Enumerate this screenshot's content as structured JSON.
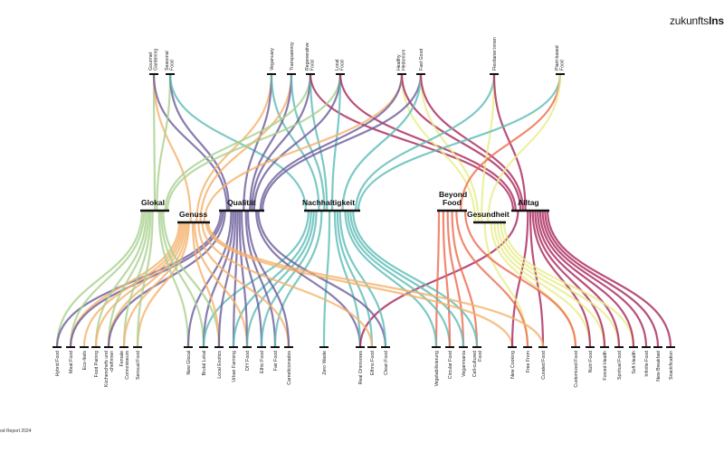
{
  "logo": {
    "part1": "zukunfts",
    "part2": "Inst"
  },
  "footnote": "od Report 2024",
  "hubs": [
    {
      "id": "glokal",
      "label": "Glokal",
      "color": "#a9d18e"
    },
    {
      "id": "genuss",
      "label": "Genuss",
      "color": "#f5b26b"
    },
    {
      "id": "qualitaet",
      "label": "Qualität",
      "color": "#6a5b9a"
    },
    {
      "id": "nachhaltigkeit",
      "label": "Nachhaltigkeit",
      "color": "#5bbcb6"
    },
    {
      "id": "beyond",
      "label": "Beyond Food",
      "color": "#ec6a4d"
    },
    {
      "id": "gesundheit",
      "label": "Gesundheit",
      "color": "#e8ec8a"
    },
    {
      "id": "alltag",
      "label": "Alltag",
      "color": "#a8245a"
    }
  ],
  "top_trends": [
    {
      "label": "Gourmet Gardening",
      "hubs": [
        "glokal",
        "genuss",
        "qualitaet"
      ]
    },
    {
      "label": "Seasonal Food",
      "hubs": [
        "glokal",
        "qualitaet",
        "nachhaltigkeit"
      ]
    },
    {
      "label": "Veganuary",
      "hubs": [
        "genuss",
        "qualitaet",
        "nachhaltigkeit"
      ]
    },
    {
      "label": "Transparency",
      "hubs": [
        "genuss",
        "qualitaet",
        "nachhaltigkeit"
      ]
    },
    {
      "label": "Regenerative Food",
      "hubs": [
        "glokal",
        "qualitaet",
        "nachhaltigkeit",
        "alltag"
      ]
    },
    {
      "label": "Local Food",
      "hubs": [
        "glokal",
        "qualitaet",
        "nachhaltigkeit",
        "alltag"
      ]
    },
    {
      "label": "Healthy Hedonism",
      "hubs": [
        "genuss",
        "qualitaet",
        "gesundheit",
        "alltag"
      ]
    },
    {
      "label": "Fast Good",
      "hubs": [
        "qualitaet",
        "nachhaltigkeit",
        "gesundheit",
        "alltag"
      ]
    },
    {
      "label": "Flexitarier:innen",
      "hubs": [
        "nachhaltigkeit",
        "gesundheit",
        "alltag"
      ]
    },
    {
      "label": "Plant-based Food",
      "hubs": [
        "nachhaltigkeit",
        "beyond",
        "gesundheit"
      ]
    }
  ],
  "bottom_trends": [
    {
      "label": "Hybrid Food",
      "hubs": [
        "glokal",
        "qualitaet"
      ]
    },
    {
      "label": "Meat Food",
      "hubs": [
        "glokal",
        "genuss",
        "qualitaet"
      ]
    },
    {
      "label": "Eco-Ikels",
      "hubs": [
        "genuss"
      ]
    },
    {
      "label": "Food Pairing",
      "hubs": [
        "glokal",
        "genuss"
      ]
    },
    {
      "label": "Küchenchefs und -chefinnen",
      "hubs": [
        "glokal",
        "genuss",
        "qualitaet"
      ]
    },
    {
      "label": "Female Connoisseurs",
      "hubs": [
        "glokal",
        "genuss"
      ]
    },
    {
      "label": "Sensual Food",
      "hubs": [
        "genuss",
        "glokal"
      ]
    },
    {
      "label": "New Glocal",
      "hubs": [
        "glokal",
        "qualitaet"
      ]
    },
    {
      "label": "Brutal Lokal",
      "hubs": [
        "glokal",
        "qualitaet",
        "nachhaltigkeit"
      ]
    },
    {
      "label": "Local Exotics",
      "hubs": [
        "glokal",
        "genuss",
        "qualitaet"
      ]
    },
    {
      "label": "Urban Farming",
      "hubs": [
        "qualitaet",
        "nachhaltigkeit"
      ]
    },
    {
      "label": "DIY Food",
      "hubs": [
        "genuss",
        "qualitaet",
        "nachhaltigkeit"
      ]
    },
    {
      "label": "Ethic Food",
      "hubs": [
        "qualitaet",
        "nachhaltigkeit"
      ]
    },
    {
      "label": "Fair Food",
      "hubs": [
        "qualitaet",
        "nachhaltigkeit"
      ]
    },
    {
      "label": "Carnetícionados",
      "hubs": [
        "genuss",
        "qualitaet"
      ]
    },
    {
      "label": "Zero Waste",
      "hubs": [
        "nachhaltigkeit"
      ]
    },
    {
      "label": "Real Omnivores",
      "hubs": [
        "qualitaet",
        "nachhaltigkeit",
        "alltag"
      ]
    },
    {
      "label": "Ethno Food",
      "hubs": [
        "nachhaltigkeit",
        "genuss"
      ]
    },
    {
      "label": "Clean Food",
      "hubs": [
        "qualitaet",
        "nachhaltigkeit"
      ]
    },
    {
      "label": "Vegetabilisierung",
      "hubs": [
        "beyond",
        "nachhaltigkeit"
      ]
    },
    {
      "label": "Circular Food",
      "hubs": [
        "nachhaltigkeit",
        "beyond"
      ]
    },
    {
      "label": "Veganmania",
      "hubs": [
        "beyond",
        "nachhaltigkeit"
      ]
    },
    {
      "label": "Cell-cultured Food",
      "hubs": [
        "beyond",
        "nachhaltigkeit"
      ]
    },
    {
      "label": "New Cooking",
      "hubs": [
        "genuss",
        "alltag"
      ]
    },
    {
      "label": "Free From",
      "hubs": [
        "gesundheit",
        "beyond"
      ]
    },
    {
      "label": "Curated Food",
      "hubs": [
        "alltag",
        "genuss"
      ]
    },
    {
      "label": "Customized Food",
      "hubs": [
        "gesundheit",
        "beyond"
      ]
    },
    {
      "label": "Nutri Food",
      "hubs": [
        "gesundheit",
        "alltag"
      ]
    },
    {
      "label": "Forced Health",
      "hubs": [
        "gesundheit",
        "alltag"
      ]
    },
    {
      "label": "Spiritual Food",
      "hubs": [
        "gesundheit",
        "alltag"
      ]
    },
    {
      "label": "Soft Health",
      "hubs": [
        "gesundheit",
        "alltag"
      ]
    },
    {
      "label": "Infinite Food",
      "hubs": [
        "alltag"
      ]
    },
    {
      "label": "New Breakfast",
      "hubs": [
        "alltag"
      ]
    },
    {
      "label": "Snackification",
      "hubs": [
        "alltag"
      ]
    }
  ]
}
